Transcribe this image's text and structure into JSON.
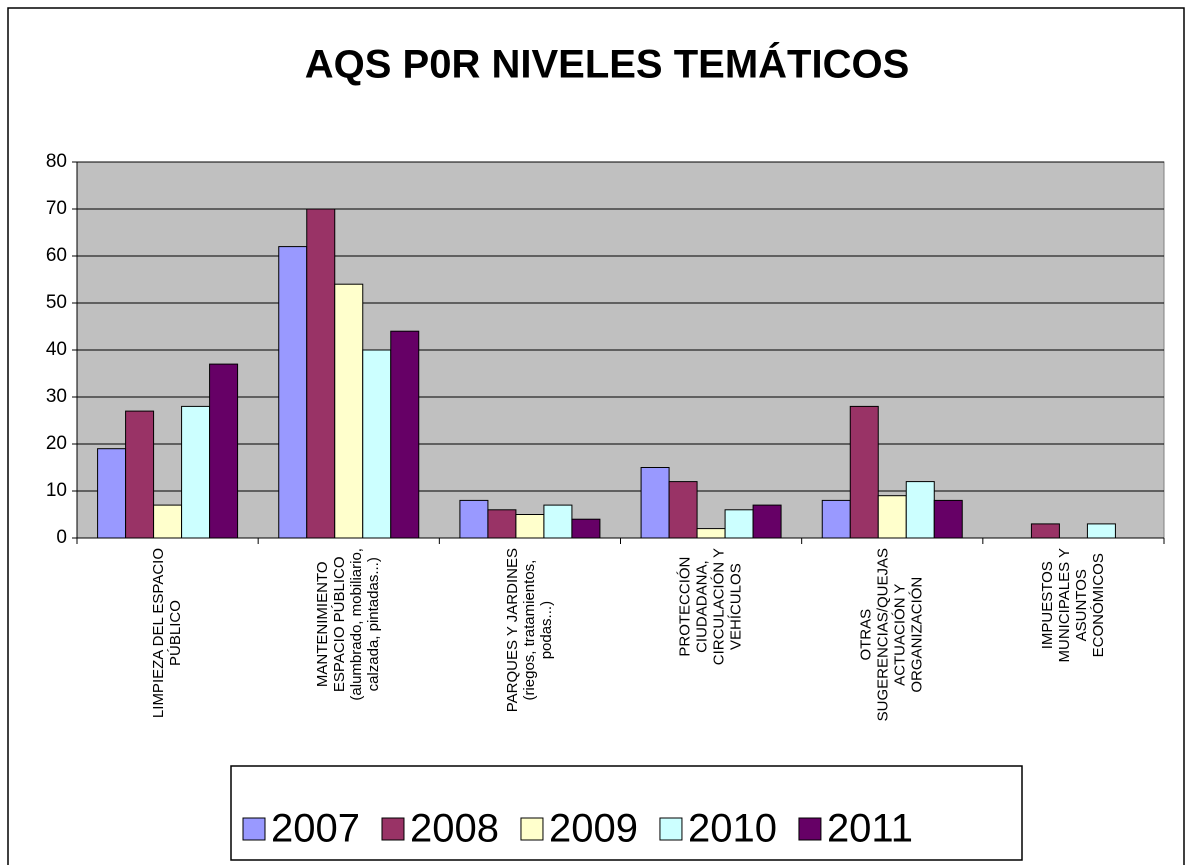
{
  "chart_data": {
    "type": "bar",
    "title": "AQS P0R NIVELES TEMÁTICOS",
    "categories": [
      [
        "LIMPIEZA DEL ESPACIO",
        "PÚBLICO"
      ],
      [
        "MANTENIMIENTO",
        "ESPACIO PÚBLICO",
        "(alumbrado, mobiliario,",
        "calzada, pintadas...)"
      ],
      [
        "PARQUES Y JARDINES",
        "(riegos, tratamientos,",
        "podas...)"
      ],
      [
        "PROTECCIÓN",
        "CIUDADANA,",
        "CIRCULACIÓN Y",
        "VEHÍCULOS"
      ],
      [
        "OTRAS",
        "SUGERENCIAS/QUEJAS",
        "ACTUACIÓN Y",
        "ORGANIZACIÓN"
      ],
      [
        "IMPUESTOS",
        "MUNICIPALES Y",
        "ASUNTOS",
        "ECONÓMICOS"
      ]
    ],
    "series": [
      {
        "name": "2007",
        "color": "#9999ff",
        "values": [
          19,
          62,
          8,
          15,
          8,
          0
        ]
      },
      {
        "name": "2008",
        "color": "#993366",
        "values": [
          27,
          70,
          6,
          12,
          28,
          3
        ]
      },
      {
        "name": "2009",
        "color": "#ffffcc",
        "values": [
          7,
          54,
          5,
          2,
          9,
          0
        ]
      },
      {
        "name": "2010",
        "color": "#ccffff",
        "values": [
          28,
          40,
          7,
          6,
          12,
          3
        ]
      },
      {
        "name": "2011",
        "color": "#660066",
        "values": [
          37,
          44,
          4,
          7,
          8,
          0
        ]
      }
    ],
    "ylim": [
      0,
      80
    ],
    "yticks": [
      0,
      10,
      20,
      30,
      40,
      50,
      60,
      70,
      80
    ],
    "grid": true,
    "legend": "bottom"
  }
}
